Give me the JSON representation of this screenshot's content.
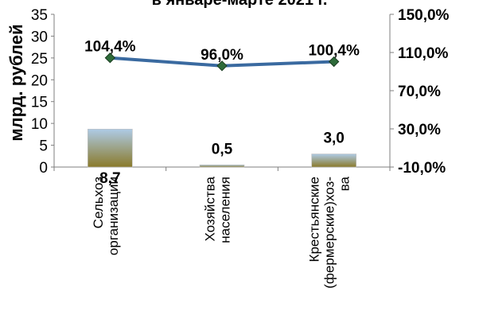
{
  "chart_data": {
    "type": "bar+line",
    "title": "в январе-марте 2021 г.",
    "ylabel": "млрд. рублей",
    "categories": [
      [
        "Сельхоз",
        "организации"
      ],
      [
        "Хозяйства",
        "населения"
      ],
      [
        "Крестьянские",
        "(фермерские)хоз-",
        "ва"
      ]
    ],
    "bars": {
      "values": [
        8.7,
        0.5,
        3.0
      ],
      "labels": [
        "8,7",
        "0,5",
        "3,0"
      ]
    },
    "line": {
      "values": [
        104.4,
        96.0,
        100.4
      ],
      "labels": [
        "104,4%",
        "96,0%",
        "100,4%"
      ]
    },
    "left_axis": {
      "min": 0,
      "max": 35,
      "ticks": [
        0,
        5,
        10,
        15,
        20,
        25,
        30,
        35
      ],
      "tick_labels": [
        "0",
        "5",
        "10",
        "15",
        "20",
        "25",
        "30",
        "35"
      ]
    },
    "right_axis": {
      "min": -10,
      "max": 150,
      "ticks": [
        -10,
        30,
        70,
        110,
        150
      ],
      "tick_labels": [
        "-10,0%",
        "30,0%",
        "70,0%",
        "110,0%",
        "150,0%"
      ]
    },
    "grid": false,
    "legend": "none",
    "colors": {
      "line": "#3a6aa0",
      "marker": "#2e6b3a",
      "bar_top": "#aecbe6",
      "bar_bottom": "#8a7a2a"
    }
  }
}
